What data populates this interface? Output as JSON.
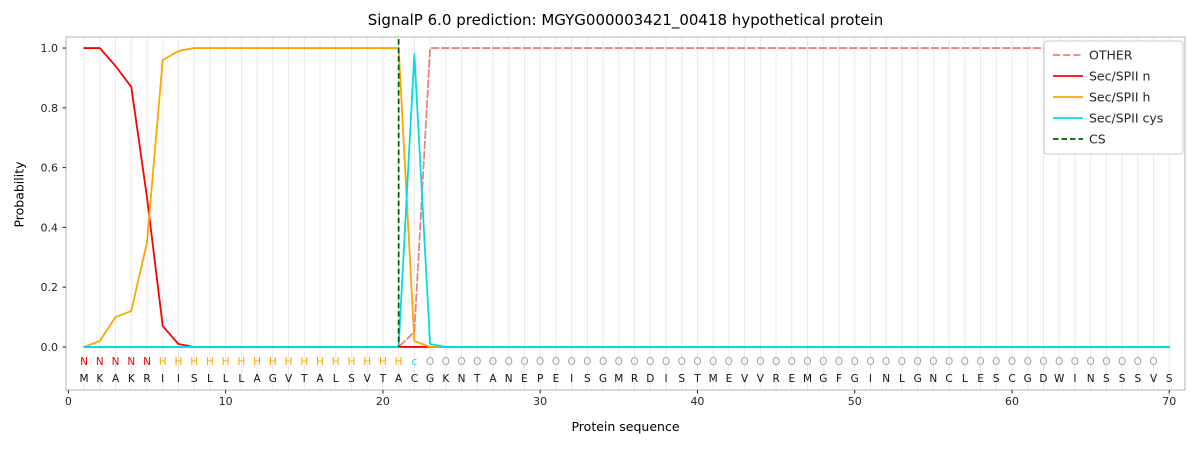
{
  "chart_data": {
    "type": "line",
    "title": "SignalP 6.0 prediction: MGYG000003421_00418 hypothetical protein",
    "xlabel": "Protein sequence",
    "ylabel": "Probability",
    "x_ticks": [
      0,
      10,
      20,
      30,
      40,
      50,
      60,
      70
    ],
    "y_ticks": [
      0.0,
      0.2,
      0.4,
      0.6,
      0.8,
      1.0
    ],
    "xlim": [
      -0.15,
      71.0
    ],
    "ylim": [
      -0.144,
      1.037
    ],
    "grid": "vertical-per-residue",
    "legend_position": "upper right",
    "sequence": "MKAKRIISLLLAGVTALSVTACGKNTANEPEISGMRDISTMEVVREMGFGINLGNCLESCGDWINSSSVS",
    "state_labels": "NNNNNHHHHHHHHHHHHHHHHcOOOOOOOOOOOOOOOOOOOOOOOOOOOOOOOOOOOOOOOOOOOOOOO",
    "state_colors": {
      "N": "#ff0000",
      "H": "#ffa500",
      "c": "#00dbe5",
      "O": "#a3a3a3"
    },
    "sequence_color": "#111111",
    "series": [
      {
        "name": "OTHER",
        "color": "#f08080",
        "dash": "7 3.2",
        "values": [
          0,
          0,
          0,
          0,
          0,
          0,
          0,
          0,
          0,
          0,
          0,
          0,
          0,
          0,
          0,
          0,
          0,
          0,
          0,
          0,
          0,
          0.05,
          1,
          1,
          1,
          1,
          1,
          1,
          1,
          1,
          1,
          1,
          1,
          1,
          1,
          1,
          1,
          1,
          1,
          1,
          1,
          1,
          1,
          1,
          1,
          1,
          1,
          1,
          1,
          1,
          1,
          1,
          1,
          1,
          1,
          1,
          1,
          1,
          1,
          1,
          1,
          1,
          1,
          1,
          1,
          1,
          1,
          1,
          1,
          1
        ]
      },
      {
        "name": "Sec/SPII n",
        "color": "#ff0000",
        "dash": null,
        "values": [
          1,
          1,
          0.94,
          0.87,
          0.5,
          0.07,
          0.01,
          0,
          0,
          0,
          0,
          0,
          0,
          0,
          0,
          0,
          0,
          0,
          0,
          0,
          0,
          0,
          0,
          0,
          0,
          0,
          0,
          0,
          0,
          0,
          0,
          0,
          0,
          0,
          0,
          0,
          0,
          0,
          0,
          0,
          0,
          0,
          0,
          0,
          0,
          0,
          0,
          0,
          0,
          0,
          0,
          0,
          0,
          0,
          0,
          0,
          0,
          0,
          0,
          0,
          0,
          0,
          0,
          0,
          0,
          0,
          0,
          0,
          0,
          0
        ]
      },
      {
        "name": "Sec/SPII h",
        "color": "#ffa500",
        "dash": null,
        "values": [
          0,
          0.02,
          0.1,
          0.12,
          0.35,
          0.96,
          0.99,
          1,
          1,
          1,
          1,
          1,
          1,
          1,
          1,
          1,
          1,
          1,
          1,
          1,
          1,
          0.02,
          0,
          0,
          0,
          0,
          0,
          0,
          0,
          0,
          0,
          0,
          0,
          0,
          0,
          0,
          0,
          0,
          0,
          0,
          0,
          0,
          0,
          0,
          0,
          0,
          0,
          0,
          0,
          0,
          0,
          0,
          0,
          0,
          0,
          0,
          0,
          0,
          0,
          0,
          0,
          0,
          0,
          0,
          0,
          0,
          0,
          0,
          0,
          0
        ]
      },
      {
        "name": "Sec/SPII cys",
        "color": "#00dbe5",
        "dash": null,
        "values": [
          0,
          0,
          0,
          0,
          0,
          0,
          0,
          0,
          0,
          0,
          0,
          0,
          0,
          0,
          0,
          0,
          0,
          0,
          0,
          0,
          0,
          0.98,
          0.01,
          0,
          0,
          0,
          0,
          0,
          0,
          0,
          0,
          0,
          0,
          0,
          0,
          0,
          0,
          0,
          0,
          0,
          0,
          0,
          0,
          0,
          0,
          0,
          0,
          0,
          0,
          0,
          0,
          0,
          0,
          0,
          0,
          0,
          0,
          0,
          0,
          0,
          0,
          0,
          0,
          0,
          0,
          0,
          0,
          0,
          0,
          0
        ]
      }
    ],
    "cs_line": {
      "name": "CS",
      "x": 21,
      "color": "#006400",
      "dash": "5.5 3"
    }
  }
}
